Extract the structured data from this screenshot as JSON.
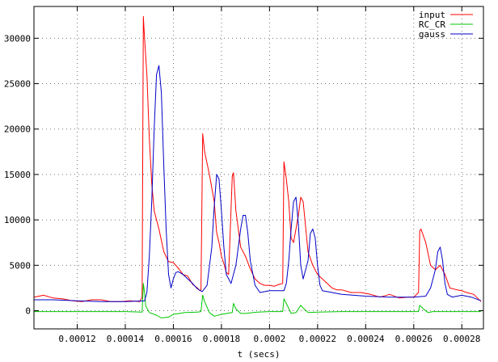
{
  "chart_data": {
    "type": "line",
    "title": "",
    "xlabel": "t (secs)",
    "ylabel": "",
    "xlim": [
      0.000102,
      0.000289
    ],
    "ylim": [
      -2000,
      33500
    ],
    "grid": true,
    "legend_position": "top-right",
    "xticks": [
      {
        "value": 0.00012,
        "label": "0.00012"
      },
      {
        "value": 0.00014,
        "label": "0.00014"
      },
      {
        "value": 0.00016,
        "label": "0.00016"
      },
      {
        "value": 0.00018,
        "label": "0.00018"
      },
      {
        "value": 0.0002,
        "label": "0.0002"
      },
      {
        "value": 0.00022,
        "label": "0.00022"
      },
      {
        "value": 0.00024,
        "label": "0.00024"
      },
      {
        "value": 0.00026,
        "label": "0.00026"
      },
      {
        "value": 0.00028,
        "label": "0.00028"
      }
    ],
    "yticks": [
      {
        "value": 0,
        "label": "0"
      },
      {
        "value": 5000,
        "label": "5000"
      },
      {
        "value": 10000,
        "label": "10000"
      },
      {
        "value": 15000,
        "label": "15000"
      },
      {
        "value": 20000,
        "label": "20000"
      },
      {
        "value": 25000,
        "label": "25000"
      },
      {
        "value": 30000,
        "label": "30000"
      }
    ],
    "series": [
      {
        "name": "input",
        "color": "#ff0000",
        "points": [
          [
            0.000102,
            1500
          ],
          [
            0.000106,
            1700
          ],
          [
            0.00011,
            1400
          ],
          [
            0.000114,
            1300
          ],
          [
            0.000118,
            1100
          ],
          [
            0.000122,
            1000
          ],
          [
            0.000126,
            1200
          ],
          [
            0.00013,
            1200
          ],
          [
            0.000134,
            1000
          ],
          [
            0.000138,
            1000
          ],
          [
            0.000142,
            1100
          ],
          [
            0.000146,
            1000
          ],
          [
            0.000147,
            1500
          ],
          [
            0.0001475,
            32400
          ],
          [
            0.000148,
            30000
          ],
          [
            0.000149,
            26000
          ],
          [
            0.00015,
            19000
          ],
          [
            0.000151,
            14000
          ],
          [
            0.000152,
            11000
          ],
          [
            0.000154,
            9000
          ],
          [
            0.000156,
            6500
          ],
          [
            0.000158,
            5400
          ],
          [
            0.00016,
            5300
          ],
          [
            0.000162,
            4700
          ],
          [
            0.000164,
            4000
          ],
          [
            0.000166,
            3800
          ],
          [
            0.000168,
            2900
          ],
          [
            0.00017,
            2500
          ],
          [
            0.000171,
            2200
          ],
          [
            0.0001715,
            2300
          ],
          [
            0.0001722,
            19500
          ],
          [
            0.000173,
            17500
          ],
          [
            0.000175,
            15000
          ],
          [
            0.000177,
            12000
          ],
          [
            0.000178,
            8600
          ],
          [
            0.000179,
            7500
          ],
          [
            0.00018,
            6000
          ],
          [
            0.000181,
            5200
          ],
          [
            0.000182,
            4200
          ],
          [
            0.000183,
            4000
          ],
          [
            0.0001845,
            14800
          ],
          [
            0.000185,
            15200
          ],
          [
            0.000186,
            11000
          ],
          [
            0.000188,
            7000
          ],
          [
            0.00019,
            6000
          ],
          [
            0.000192,
            4600
          ],
          [
            0.000194,
            3500
          ],
          [
            0.000196,
            3000
          ],
          [
            0.000198,
            2800
          ],
          [
            0.0002,
            2800
          ],
          [
            0.000202,
            2700
          ],
          [
            0.000204,
            2900
          ],
          [
            0.0002055,
            3000
          ],
          [
            0.000206,
            16400
          ],
          [
            0.000207,
            14500
          ],
          [
            0.000208,
            12000
          ],
          [
            0.000209,
            8000
          ],
          [
            0.00021,
            7500
          ],
          [
            0.000212,
            10500
          ],
          [
            0.000213,
            12500
          ],
          [
            0.000214,
            12000
          ],
          [
            0.000216,
            6500
          ],
          [
            0.000218,
            5000
          ],
          [
            0.00022,
            4000
          ],
          [
            0.000222,
            3500
          ],
          [
            0.000224,
            3000
          ],
          [
            0.000226,
            2500
          ],
          [
            0.000228,
            2300
          ],
          [
            0.00023,
            2300
          ],
          [
            0.000234,
            2000
          ],
          [
            0.000238,
            2000
          ],
          [
            0.000242,
            1800
          ],
          [
            0.000246,
            1500
          ],
          [
            0.00025,
            1800
          ],
          [
            0.000254,
            1400
          ],
          [
            0.000258,
            1500
          ],
          [
            0.00026,
            1500
          ],
          [
            0.000262,
            2000
          ],
          [
            0.0002625,
            8800
          ],
          [
            0.000263,
            9000
          ],
          [
            0.000265,
            7500
          ],
          [
            0.000267,
            5000
          ],
          [
            0.000269,
            4500
          ],
          [
            0.000271,
            5000
          ],
          [
            0.000273,
            4000
          ],
          [
            0.000275,
            2500
          ],
          [
            0.000278,
            2300
          ],
          [
            0.00028,
            2200
          ],
          [
            0.000282,
            2000
          ],
          [
            0.000285,
            1800
          ],
          [
            0.000288,
            1000
          ]
        ]
      },
      {
        "name": "RC_CR",
        "color": "#00c800",
        "points": [
          [
            0.000102,
            -100
          ],
          [
            0.00012,
            -100
          ],
          [
            0.00014,
            -100
          ],
          [
            0.000147,
            -150
          ],
          [
            0.0001475,
            3000
          ],
          [
            0.000148,
            2000
          ],
          [
            0.0001485,
            500
          ],
          [
            0.00015,
            -200
          ],
          [
            0.000153,
            -500
          ],
          [
            0.000155,
            -800
          ],
          [
            0.000158,
            -700
          ],
          [
            0.00016,
            -400
          ],
          [
            0.000165,
            -200
          ],
          [
            0.00017,
            -150
          ],
          [
            0.0001715,
            -100
          ],
          [
            0.0001722,
            1700
          ],
          [
            0.000173,
            1000
          ],
          [
            0.000175,
            -200
          ],
          [
            0.000177,
            -600
          ],
          [
            0.00018,
            -400
          ],
          [
            0.0001845,
            -200
          ],
          [
            0.000185,
            800
          ],
          [
            0.000186,
            200
          ],
          [
            0.000188,
            -300
          ],
          [
            0.00019,
            -300
          ],
          [
            0.000195,
            -150
          ],
          [
            0.0002,
            -100
          ],
          [
            0.0002055,
            -100
          ],
          [
            0.000206,
            1300
          ],
          [
            0.000207,
            800
          ],
          [
            0.000209,
            -300
          ],
          [
            0.000211,
            -200
          ],
          [
            0.000213,
            600
          ],
          [
            0.000214,
            300
          ],
          [
            0.000216,
            -200
          ],
          [
            0.00022,
            -150
          ],
          [
            0.00023,
            -100
          ],
          [
            0.00025,
            -100
          ],
          [
            0.00026,
            -100
          ],
          [
            0.000262,
            -100
          ],
          [
            0.0002625,
            600
          ],
          [
            0.000264,
            200
          ],
          [
            0.000266,
            -200
          ],
          [
            0.000268,
            -100
          ],
          [
            0.000275,
            -100
          ],
          [
            0.000288,
            -100
          ]
        ]
      },
      {
        "name": "gauss",
        "color": "#0000c8",
        "points": [
          [
            0.000102,
            1200
          ],
          [
            0.00011,
            1200
          ],
          [
            0.00012,
            1100
          ],
          [
            0.00013,
            1000
          ],
          [
            0.00014,
            1000
          ],
          [
            0.000148,
            1100
          ],
          [
            0.000149,
            2000
          ],
          [
            0.00015,
            6000
          ],
          [
            0.000151,
            12000
          ],
          [
            0.000152,
            20000
          ],
          [
            0.000153,
            26000
          ],
          [
            0.000154,
            27000
          ],
          [
            0.000155,
            24000
          ],
          [
            0.000156,
            16000
          ],
          [
            0.000157,
            9000
          ],
          [
            0.000158,
            4000
          ],
          [
            0.000159,
            2500
          ],
          [
            0.00016,
            3500
          ],
          [
            0.000161,
            4200
          ],
          [
            0.000162,
            4300
          ],
          [
            0.000164,
            4000
          ],
          [
            0.000166,
            3500
          ],
          [
            0.000168,
            3000
          ],
          [
            0.00017,
            2400
          ],
          [
            0.000172,
            2100
          ],
          [
            0.000174,
            2800
          ],
          [
            0.000176,
            7000
          ],
          [
            0.000177,
            11500
          ],
          [
            0.000178,
            15000
          ],
          [
            0.000179,
            14500
          ],
          [
            0.00018,
            11000
          ],
          [
            0.000181,
            7000
          ],
          [
            0.000182,
            4000
          ],
          [
            0.000184,
            3000
          ],
          [
            0.000186,
            5000
          ],
          [
            0.000188,
            9000
          ],
          [
            0.000189,
            10500
          ],
          [
            0.00019,
            10500
          ],
          [
            0.000191,
            8500
          ],
          [
            0.000192,
            5500
          ],
          [
            0.000194,
            2800
          ],
          [
            0.000196,
            2000
          ],
          [
            0.0002,
            2200
          ],
          [
            0.000204,
            2200
          ],
          [
            0.000206,
            2200
          ],
          [
            0.000207,
            3000
          ],
          [
            0.000208,
            5500
          ],
          [
            0.000209,
            9000
          ],
          [
            0.00021,
            12000
          ],
          [
            0.000211,
            12500
          ],
          [
            0.000212,
            9500
          ],
          [
            0.000213,
            5000
          ],
          [
            0.000214,
            3500
          ],
          [
            0.000216,
            5500
          ],
          [
            0.000217,
            8500
          ],
          [
            0.000218,
            9000
          ],
          [
            0.000219,
            8000
          ],
          [
            0.00022,
            5000
          ],
          [
            0.000221,
            2800
          ],
          [
            0.000222,
            2200
          ],
          [
            0.000226,
            2000
          ],
          [
            0.00023,
            1800
          ],
          [
            0.00024,
            1600
          ],
          [
            0.00025,
            1500
          ],
          [
            0.00026,
            1500
          ],
          [
            0.000265,
            1600
          ],
          [
            0.000267,
            2500
          ],
          [
            0.000269,
            4500
          ],
          [
            0.00027,
            6500
          ],
          [
            0.000271,
            7000
          ],
          [
            0.000272,
            5500
          ],
          [
            0.000273,
            3000
          ],
          [
            0.000274,
            1800
          ],
          [
            0.000276,
            1500
          ],
          [
            0.00028,
            1700
          ],
          [
            0.000284,
            1500
          ],
          [
            0.000288,
            1100
          ]
        ]
      }
    ]
  }
}
